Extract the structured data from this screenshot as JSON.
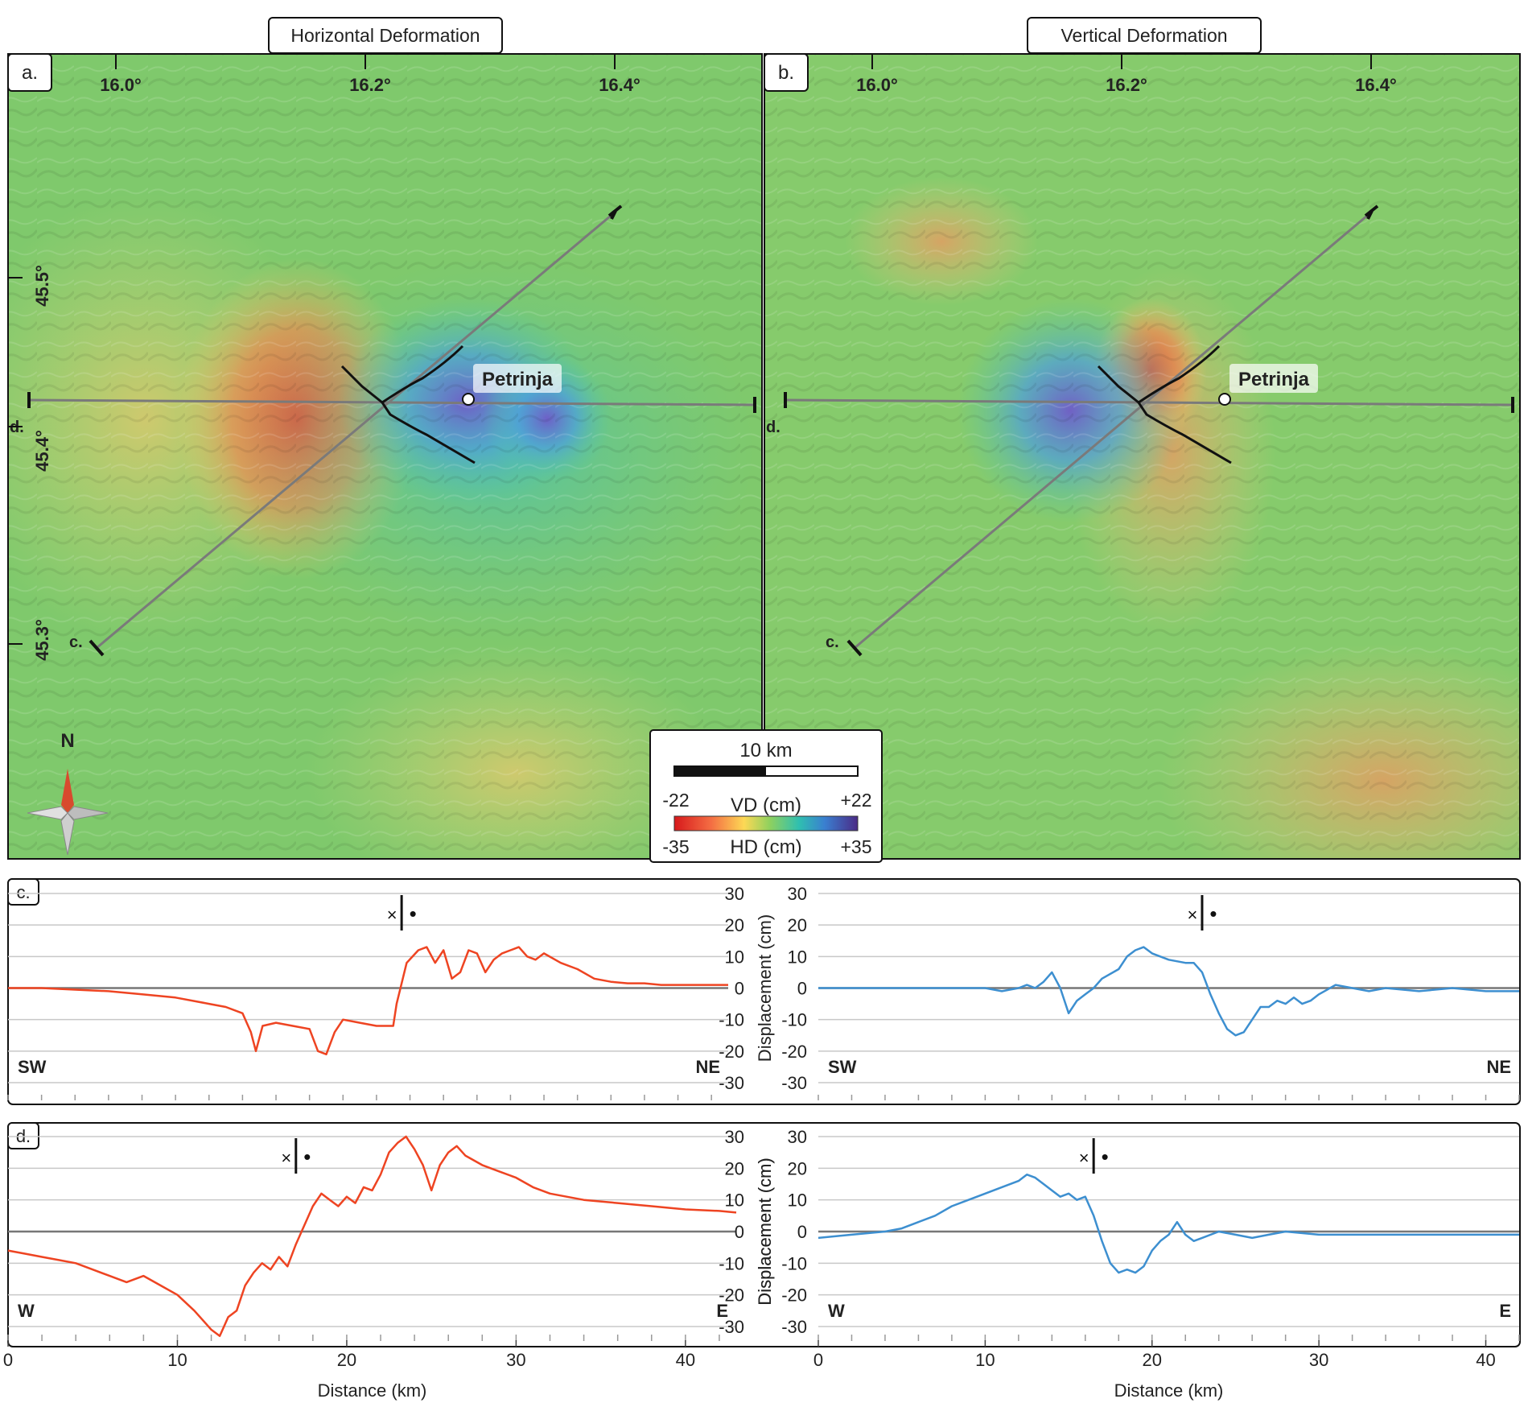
{
  "maps": {
    "left_title": "Horizontal Deformation",
    "right_title": "Vertical Deformation",
    "left_panel_label": "a.",
    "right_panel_label": "b.",
    "lon_ticks": [
      "16.0°",
      "16.2°",
      "16.4°"
    ],
    "lat_ticks": [
      "45.5°",
      "45.4°",
      "45.3°"
    ],
    "city": "Petrinja",
    "profile_c_label": "c.",
    "profile_d_label": "d.",
    "north_label": "N"
  },
  "legend": {
    "scale_label": "10 km",
    "vd_label": "VD (cm)",
    "vd_min": "-22",
    "vd_max": "+22",
    "hd_label": "HD (cm)",
    "hd_min": "-35",
    "hd_max": "+35"
  },
  "colors": {
    "hd_line": "#ee4422",
    "vd_line": "#3d8fd0",
    "zero_line": "#777777",
    "grid": "#c8c8c8"
  },
  "chart_data": [
    {
      "type": "line",
      "panel_label": "c.",
      "position": "top-left",
      "ylabel": "Displacement (cm)",
      "ylim": [
        -30,
        30
      ],
      "yticks": [
        30,
        20,
        10,
        0,
        -10,
        -20,
        -30
      ],
      "xlim": [
        0,
        43
      ],
      "start_label": "SW",
      "end_label": "NE",
      "fault_marker_x": 23.5,
      "cross_symbol": "×",
      "dot_symbol": "•",
      "series": [
        {
          "x": [
            0,
            2,
            4,
            6,
            8,
            10,
            12,
            13,
            14,
            14.5,
            14.8,
            15.2,
            16,
            17,
            18,
            18.5,
            19,
            19.5,
            20,
            21,
            22,
            23,
            23.2,
            23.8,
            24.5,
            25,
            25.5,
            26,
            26.5,
            27,
            27.5,
            28,
            28.5,
            29,
            29.5,
            30,
            30.5,
            31,
            31.5,
            32,
            33,
            34,
            35,
            36,
            37,
            38,
            39,
            40,
            41,
            42,
            43
          ],
          "y": [
            0,
            0,
            -0.5,
            -1,
            -2,
            -3,
            -5,
            -6,
            -8,
            -14,
            -20,
            -12,
            -11,
            -12,
            -13,
            -20,
            -21,
            -14,
            -10,
            -11,
            -12,
            -12,
            -5,
            8,
            12,
            13,
            8,
            12,
            3,
            5,
            12,
            11,
            5,
            9,
            11,
            12,
            13,
            10,
            9,
            11,
            8,
            6,
            3,
            2,
            1.5,
            1.5,
            1,
            1,
            1,
            1,
            1
          ]
        }
      ]
    },
    {
      "type": "line",
      "panel_label": "",
      "position": "top-right",
      "ylabel": "",
      "ylim": [
        -30,
        30
      ],
      "yticks": [
        30,
        20,
        10,
        0,
        -10,
        -20,
        -30
      ],
      "xlim": [
        0,
        42
      ],
      "start_label": "SW",
      "end_label": "NE",
      "fault_marker_x": 23,
      "cross_symbol": "×",
      "dot_symbol": "•",
      "series": [
        {
          "x": [
            0,
            3,
            6,
            9,
            10,
            11,
            12,
            12.5,
            13,
            13.5,
            14,
            14.5,
            15,
            15.5,
            16,
            16.5,
            17,
            18,
            18.5,
            19,
            19.5,
            20,
            21,
            22,
            22.5,
            23,
            23.5,
            24,
            24.5,
            25,
            25.5,
            26,
            26.5,
            27,
            27.5,
            28,
            28.5,
            29,
            29.5,
            30,
            31,
            32,
            33,
            34,
            36,
            38,
            40,
            42
          ],
          "y": [
            0,
            0,
            0,
            0,
            0,
            -1,
            0,
            1,
            0,
            2,
            5,
            0,
            -8,
            -4,
            -2,
            0,
            3,
            6,
            10,
            12,
            13,
            11,
            9,
            8,
            8,
            5,
            -2,
            -8,
            -13,
            -15,
            -14,
            -10,
            -6,
            -6,
            -4,
            -5,
            -3,
            -5,
            -4,
            -2,
            1,
            0,
            -1,
            0,
            -1,
            0,
            -1,
            -1
          ]
        }
      ]
    },
    {
      "type": "line",
      "panel_label": "d.",
      "position": "bottom-left",
      "ylabel": "Displacement (cm)",
      "ylim": [
        -30,
        30
      ],
      "yticks": [
        30,
        20,
        10,
        0,
        -10,
        -20,
        -30
      ],
      "xlim": [
        0,
        43
      ],
      "xlabel": "Distance (km)",
      "xticks": [
        0,
        10,
        20,
        30,
        40
      ],
      "start_label": "W",
      "end_label": "E",
      "fault_marker_x": 17,
      "cross_symbol": "×",
      "dot_symbol": "•",
      "series": [
        {
          "x": [
            0,
            1,
            2,
            3,
            4,
            5,
            6,
            7,
            8,
            9,
            10,
            11,
            12,
            12.5,
            13,
            13.5,
            14,
            14.5,
            15,
            15.5,
            16,
            16.5,
            17,
            17.5,
            18,
            18.5,
            19,
            19.5,
            20,
            20.5,
            21,
            21.5,
            22,
            22.5,
            23,
            23.5,
            24,
            24.5,
            25,
            25.5,
            26,
            26.5,
            27,
            28,
            29,
            30,
            31,
            32,
            34,
            36,
            38,
            40,
            42,
            43
          ],
          "y": [
            -6,
            -7,
            -8,
            -9,
            -10,
            -12,
            -14,
            -16,
            -14,
            -17,
            -20,
            -25,
            -31,
            -33,
            -27,
            -25,
            -17,
            -13,
            -10,
            -12,
            -8,
            -11,
            -4,
            2,
            8,
            12,
            10,
            8,
            11,
            9,
            14,
            13,
            18,
            25,
            28,
            30,
            26,
            21,
            13,
            21,
            25,
            27,
            24,
            21,
            19,
            17,
            14,
            12,
            10,
            9,
            8,
            7,
            6.5,
            6
          ]
        }
      ]
    },
    {
      "type": "line",
      "panel_label": "",
      "position": "bottom-right",
      "ylabel": "Displacement (cm)",
      "ylim": [
        -30,
        30
      ],
      "yticks": [
        30,
        20,
        10,
        0,
        -10,
        -20,
        -30
      ],
      "xlim": [
        0,
        42
      ],
      "xlabel": "Distance (km)",
      "xticks": [
        0,
        10,
        20,
        30,
        40
      ],
      "start_label": "W",
      "end_label": "E",
      "fault_marker_x": 16.5,
      "cross_symbol": "×",
      "dot_symbol": "•",
      "series": [
        {
          "x": [
            0,
            2,
            4,
            5,
            6,
            7,
            8,
            9,
            10,
            11,
            12,
            12.5,
            13,
            13.5,
            14,
            14.5,
            15,
            15.5,
            16,
            16.5,
            17,
            17.5,
            18,
            18.5,
            19,
            19.5,
            20,
            20.5,
            21,
            21.5,
            22,
            22.5,
            23,
            24,
            25,
            26,
            27,
            28,
            30,
            32,
            34,
            36,
            38,
            40,
            42
          ],
          "y": [
            -2,
            -1,
            0,
            1,
            3,
            5,
            8,
            10,
            12,
            14,
            16,
            18,
            17,
            15,
            13,
            11,
            12,
            10,
            11,
            5,
            -3,
            -10,
            -13,
            -12,
            -13,
            -11,
            -6,
            -3,
            -1,
            3,
            -1,
            -3,
            -2,
            0,
            -1,
            -2,
            -1,
            0,
            -1,
            -1,
            -1,
            -1,
            -1,
            -1,
            -1
          ]
        }
      ]
    }
  ]
}
